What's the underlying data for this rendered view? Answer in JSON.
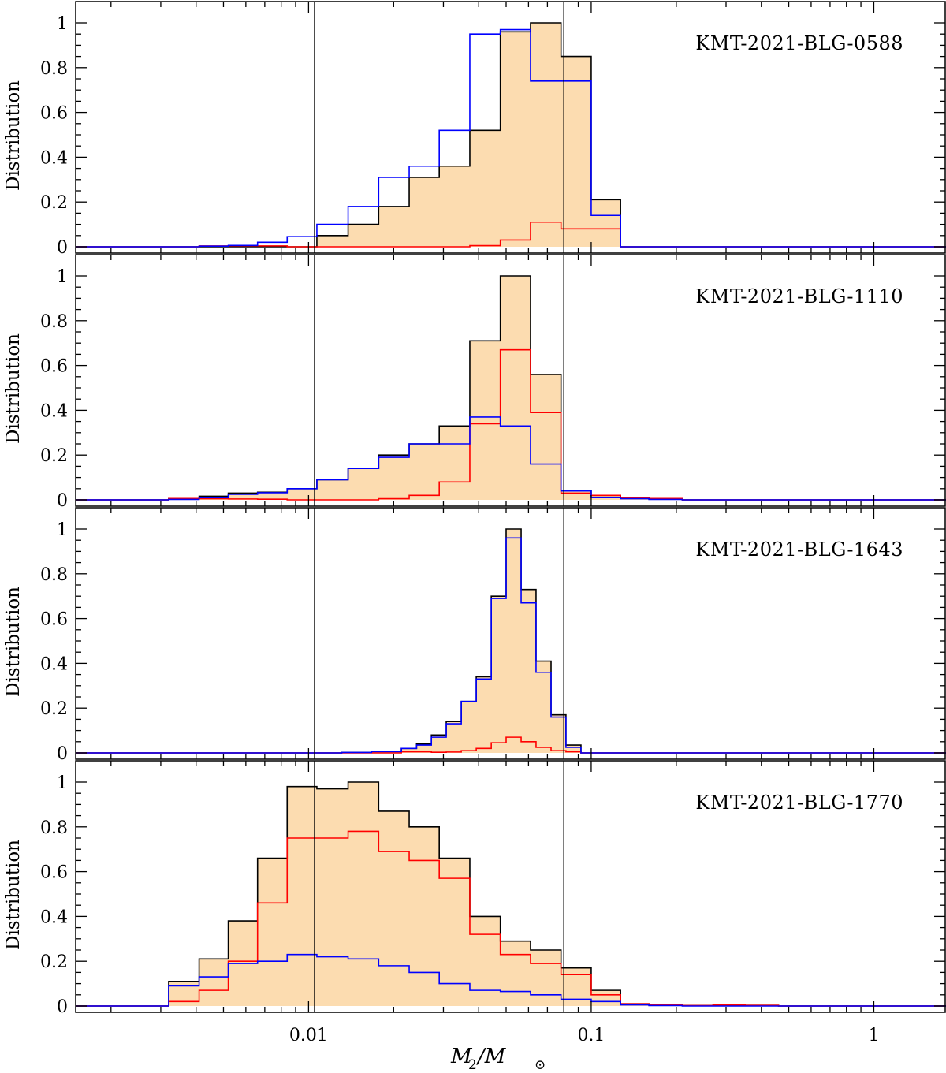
{
  "chart_data": [
    {
      "type": "histogram",
      "title": "KMT-2021-BLG-0588",
      "ylabel": "Distribution",
      "x_scale": "log",
      "xlim": [
        0.0015,
        1.8
      ],
      "ylim": [
        0,
        1.08
      ],
      "yticks": [
        "0",
        "0.2",
        "0.4",
        "0.6",
        "0.8",
        "1"
      ],
      "vlines": [
        0.0105,
        0.08
      ],
      "series": [
        {
          "color": "#000000",
          "fill": "#fcdcb0",
          "steps": [
            [
              0.0032,
              0.0
            ],
            [
              0.0041,
              0.0
            ],
            [
              0.0052,
              0.0
            ],
            [
              0.0066,
              0.0
            ],
            [
              0.0084,
              0.0
            ],
            [
              0.0107,
              0.05
            ],
            [
              0.0138,
              0.1
            ],
            [
              0.0177,
              0.18
            ],
            [
              0.0227,
              0.31
            ],
            [
              0.029,
              0.36
            ],
            [
              0.0372,
              0.52
            ],
            [
              0.0477,
              0.96
            ],
            [
              0.061,
              1.0
            ],
            [
              0.0782,
              0.85
            ],
            [
              0.1,
              0.21
            ],
            [
              0.127,
              0.0
            ]
          ]
        },
        {
          "color": "#ff0000",
          "steps": [
            [
              0.0032,
              0.0
            ],
            [
              0.0041,
              0.004
            ],
            [
              0.0052,
              0.004
            ],
            [
              0.0066,
              0.004
            ],
            [
              0.0084,
              0.0
            ],
            [
              0.0107,
              0.0
            ],
            [
              0.0138,
              0.0
            ],
            [
              0.0177,
              0.0
            ],
            [
              0.0227,
              0.0
            ],
            [
              0.029,
              0.0
            ],
            [
              0.0372,
              0.005
            ],
            [
              0.0477,
              0.03
            ],
            [
              0.061,
              0.11
            ],
            [
              0.0782,
              0.08
            ],
            [
              0.1,
              0.08
            ],
            [
              0.127,
              0.0
            ]
          ]
        },
        {
          "color": "#0000ff",
          "steps": [
            [
              0.0032,
              0.0
            ],
            [
              0.0041,
              0.003
            ],
            [
              0.0052,
              0.006
            ],
            [
              0.0066,
              0.02
            ],
            [
              0.0084,
              0.045
            ],
            [
              0.0107,
              0.1
            ],
            [
              0.0138,
              0.18
            ],
            [
              0.0177,
              0.31
            ],
            [
              0.0227,
              0.36
            ],
            [
              0.029,
              0.52
            ],
            [
              0.0372,
              0.95
            ],
            [
              0.0477,
              0.97
            ],
            [
              0.061,
              0.74
            ],
            [
              0.0782,
              0.74
            ],
            [
              0.1,
              0.14
            ],
            [
              0.127,
              0.0
            ]
          ]
        }
      ]
    },
    {
      "type": "histogram",
      "title": "KMT-2021-BLG-1110",
      "ylabel": "Distribution",
      "x_scale": "log",
      "xlim": [
        0.0015,
        1.8
      ],
      "ylim": [
        0,
        1.08
      ],
      "yticks": [
        "0",
        "0.2",
        "0.4",
        "0.6",
        "0.8",
        "1"
      ],
      "vlines": [
        0.0105,
        0.08
      ],
      "series": [
        {
          "color": "#000000",
          "fill": "#fcdcb0",
          "steps": [
            [
              0.0032,
              0.006
            ],
            [
              0.0041,
              0.016
            ],
            [
              0.0052,
              0.03
            ],
            [
              0.0066,
              0.034
            ],
            [
              0.0084,
              0.05
            ],
            [
              0.0107,
              0.09
            ],
            [
              0.0138,
              0.14
            ],
            [
              0.0177,
              0.2
            ],
            [
              0.0227,
              0.25
            ],
            [
              0.029,
              0.33
            ],
            [
              0.0372,
              0.71
            ],
            [
              0.0477,
              1.0
            ],
            [
              0.061,
              0.56
            ],
            [
              0.0782,
              0.04
            ],
            [
              0.1,
              0.02
            ],
            [
              0.127,
              0.01
            ],
            [
              0.16,
              0.006
            ],
            [
              0.21,
              0.0
            ]
          ]
        },
        {
          "color": "#ff0000",
          "steps": [
            [
              0.0032,
              0.006
            ],
            [
              0.0041,
              0.005
            ],
            [
              0.0052,
              0.004
            ],
            [
              0.0066,
              0.003
            ],
            [
              0.0084,
              0.0
            ],
            [
              0.0107,
              0.0
            ],
            [
              0.0138,
              0.0
            ],
            [
              0.0177,
              0.005
            ],
            [
              0.0227,
              0.02
            ],
            [
              0.029,
              0.08
            ],
            [
              0.0372,
              0.34
            ],
            [
              0.0477,
              0.67
            ],
            [
              0.061,
              0.39
            ],
            [
              0.0782,
              0.03
            ],
            [
              0.1,
              0.02
            ],
            [
              0.127,
              0.01
            ],
            [
              0.16,
              0.006
            ],
            [
              0.21,
              0.0
            ]
          ]
        },
        {
          "color": "#0000ff",
          "steps": [
            [
              0.0032,
              0.002
            ],
            [
              0.0041,
              0.01
            ],
            [
              0.0052,
              0.025
            ],
            [
              0.0066,
              0.032
            ],
            [
              0.0084,
              0.05
            ],
            [
              0.0107,
              0.09
            ],
            [
              0.0138,
              0.14
            ],
            [
              0.0177,
              0.19
            ],
            [
              0.0227,
              0.25
            ],
            [
              0.029,
              0.25
            ],
            [
              0.0372,
              0.37
            ],
            [
              0.0477,
              0.33
            ],
            [
              0.061,
              0.16
            ],
            [
              0.0782,
              0.04
            ],
            [
              0.1,
              0.01
            ],
            [
              0.127,
              0.005
            ],
            [
              0.16,
              0.002
            ],
            [
              0.21,
              0.0
            ]
          ]
        }
      ]
    },
    {
      "type": "histogram",
      "title": "KMT-2021-BLG-1643",
      "ylabel": "Distribution",
      "x_scale": "log",
      "xlim": [
        0.0015,
        1.8
      ],
      "ylim": [
        0,
        1.08
      ],
      "yticks": [
        "0",
        "0.2",
        "0.4",
        "0.6",
        "0.8",
        "1"
      ],
      "vlines": [
        0.0105,
        0.08
      ],
      "series": [
        {
          "color": "#000000",
          "fill": "#fcdcb0",
          "steps": [
            [
              0.0131,
              0.002
            ],
            [
              0.0167,
              0.006
            ],
            [
              0.0213,
              0.02
            ],
            [
              0.0241,
              0.04
            ],
            [
              0.0272,
              0.08
            ],
            [
              0.0307,
              0.14
            ],
            [
              0.0347,
              0.23
            ],
            [
              0.0392,
              0.34
            ],
            [
              0.0443,
              0.7
            ],
            [
              0.05,
              1.0
            ],
            [
              0.0565,
              0.73
            ],
            [
              0.0638,
              0.41
            ],
            [
              0.0721,
              0.17
            ],
            [
              0.0814,
              0.035
            ],
            [
              0.092,
              0.0
            ]
          ]
        },
        {
          "color": "#ff0000",
          "steps": [
            [
              0.0131,
              0.0
            ],
            [
              0.0167,
              0.0
            ],
            [
              0.0213,
              0.005
            ],
            [
              0.0241,
              0.005
            ],
            [
              0.0272,
              0.003
            ],
            [
              0.0307,
              0.004
            ],
            [
              0.0347,
              0.01
            ],
            [
              0.0392,
              0.02
            ],
            [
              0.0443,
              0.045
            ],
            [
              0.05,
              0.07
            ],
            [
              0.0565,
              0.05
            ],
            [
              0.0638,
              0.025
            ],
            [
              0.0721,
              0.01
            ],
            [
              0.0814,
              0.005
            ],
            [
              0.092,
              0.0
            ]
          ]
        },
        {
          "color": "#0000ff",
          "steps": [
            [
              0.0131,
              0.002
            ],
            [
              0.0167,
              0.006
            ],
            [
              0.0213,
              0.02
            ],
            [
              0.0241,
              0.035
            ],
            [
              0.0272,
              0.07
            ],
            [
              0.0307,
              0.13
            ],
            [
              0.0347,
              0.23
            ],
            [
              0.0392,
              0.33
            ],
            [
              0.0443,
              0.69
            ],
            [
              0.05,
              0.96
            ],
            [
              0.0565,
              0.67
            ],
            [
              0.0638,
              0.36
            ],
            [
              0.0721,
              0.16
            ],
            [
              0.0814,
              0.025
            ],
            [
              0.092,
              0.0
            ]
          ]
        }
      ]
    },
    {
      "type": "histogram",
      "title": "KMT-2021-BLG-1770",
      "ylabel": "Distribution",
      "xlabel": "M2/M⊙",
      "x_scale": "log",
      "xlim": [
        0.0015,
        1.8
      ],
      "ylim": [
        0,
        1.08
      ],
      "yticks": [
        "0",
        "0.2",
        "0.4",
        "0.6",
        "0.8",
        "1"
      ],
      "xticks": [
        "0.01",
        "0.1",
        "1"
      ],
      "vlines": [
        0.0105,
        0.08
      ],
      "series": [
        {
          "color": "#000000",
          "fill": "#fcdcb0",
          "steps": [
            [
              0.0032,
              0.11
            ],
            [
              0.0041,
              0.21
            ],
            [
              0.0052,
              0.38
            ],
            [
              0.0066,
              0.66
            ],
            [
              0.0084,
              0.98
            ],
            [
              0.0107,
              0.97
            ],
            [
              0.0138,
              1.0
            ],
            [
              0.0177,
              0.87
            ],
            [
              0.0227,
              0.8
            ],
            [
              0.029,
              0.66
            ],
            [
              0.0372,
              0.4
            ],
            [
              0.0477,
              0.29
            ],
            [
              0.061,
              0.25
            ],
            [
              0.0782,
              0.17
            ],
            [
              0.1,
              0.07
            ],
            [
              0.127,
              0.01
            ],
            [
              0.16,
              0.005
            ],
            [
              0.21,
              0.002
            ],
            [
              0.27,
              0.005
            ],
            [
              0.35,
              0.003
            ],
            [
              0.46,
              0.0
            ]
          ]
        },
        {
          "color": "#ff0000",
          "steps": [
            [
              0.0032,
              0.02
            ],
            [
              0.0041,
              0.07
            ],
            [
              0.0052,
              0.2
            ],
            [
              0.0066,
              0.46
            ],
            [
              0.0084,
              0.75
            ],
            [
              0.0107,
              0.75
            ],
            [
              0.0138,
              0.78
            ],
            [
              0.0177,
              0.69
            ],
            [
              0.0227,
              0.65
            ],
            [
              0.029,
              0.57
            ],
            [
              0.0372,
              0.32
            ],
            [
              0.0477,
              0.23
            ],
            [
              0.061,
              0.19
            ],
            [
              0.0782,
              0.14
            ],
            [
              0.1,
              0.05
            ],
            [
              0.127,
              0.01
            ],
            [
              0.16,
              0.005
            ],
            [
              0.21,
              0.002
            ],
            [
              0.27,
              0.005
            ],
            [
              0.35,
              0.003
            ],
            [
              0.46,
              0.0
            ]
          ]
        },
        {
          "color": "#0000ff",
          "steps": [
            [
              0.0032,
              0.09
            ],
            [
              0.0041,
              0.13
            ],
            [
              0.0052,
              0.19
            ],
            [
              0.0066,
              0.2
            ],
            [
              0.0084,
              0.23
            ],
            [
              0.0107,
              0.22
            ],
            [
              0.0138,
              0.21
            ],
            [
              0.0177,
              0.18
            ],
            [
              0.0227,
              0.15
            ],
            [
              0.029,
              0.1
            ],
            [
              0.0372,
              0.07
            ],
            [
              0.0477,
              0.065
            ],
            [
              0.061,
              0.05
            ],
            [
              0.0782,
              0.03
            ],
            [
              0.1,
              0.02
            ],
            [
              0.127,
              0.005
            ],
            [
              0.16,
              0.002
            ],
            [
              0.21,
              0.0
            ]
          ]
        }
      ]
    }
  ],
  "xlabel_main": "M",
  "xlabel_sub": "2",
  "xlabel_rest": "/M",
  "xlabel_sun": "⊙"
}
